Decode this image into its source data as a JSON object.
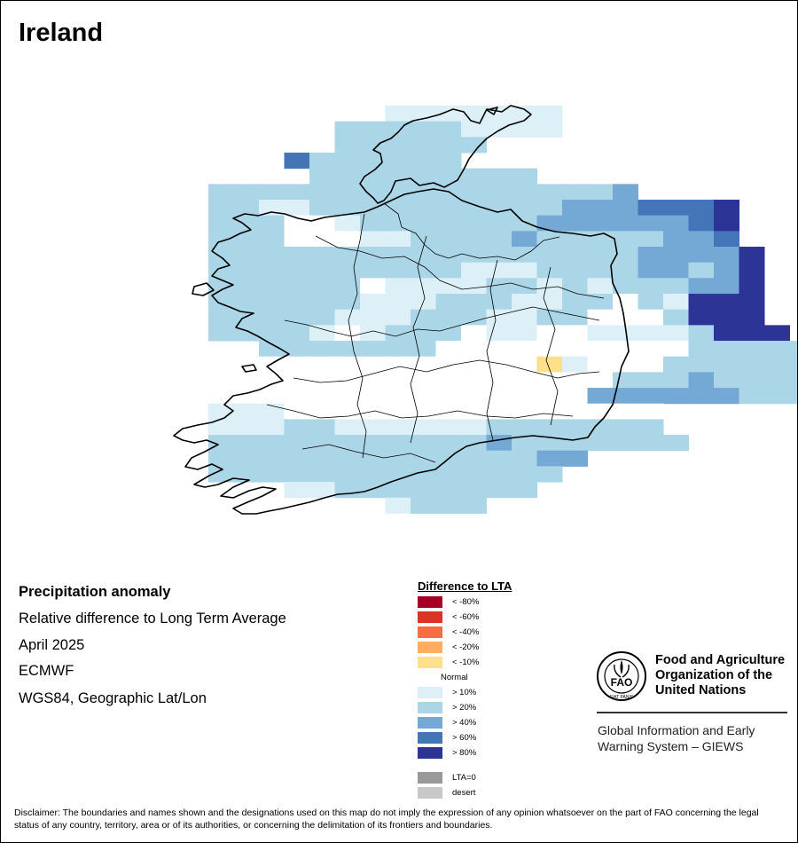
{
  "title": "Ireland",
  "info": {
    "heading": "Precipitation anomaly",
    "line1": "Relative difference to Long Term Average",
    "line2": "April 2025",
    "line3": "ECMWF",
    "line4": "WGS84, Geographic Lat/Lon"
  },
  "legend": {
    "title": "Difference to LTA",
    "items": [
      {
        "label": "< -80%",
        "color": "#a50026"
      },
      {
        "label": "< -60%",
        "color": "#dd3324"
      },
      {
        "label": "< -40%",
        "color": "#f46d43"
      },
      {
        "label": "< -20%",
        "color": "#fdae61"
      },
      {
        "label": "< -10%",
        "color": "#fee08b"
      },
      {
        "label": "Normal",
        "color": "#ffffff"
      },
      {
        "label": "> 10%",
        "color": "#ddf0f7"
      },
      {
        "label": "> 20%",
        "color": "#abd6e8"
      },
      {
        "label": "> 40%",
        "color": "#74a9d6"
      },
      {
        "label": "> 60%",
        "color": "#4575b9"
      },
      {
        "label": "> 80%",
        "color": "#2c3495"
      }
    ],
    "extras": [
      {
        "label": "LTA=0",
        "color": "#999999"
      },
      {
        "label": "desert",
        "color": "#c8c8c8"
      }
    ]
  },
  "grid_colors": {
    "n": "#ffffff",
    "a": "#ddf0f7",
    "b": "#abd6e8",
    "c": "#74a9d6",
    "d": "#4575b9",
    "e": "#2c3495",
    "y": "#fee08b"
  },
  "grid": [
    {
      "row": 0,
      "cells": "...........aaaaaaa......"
    },
    {
      "row": 1,
      "cells": ".........bbbbbaaaa......"
    },
    {
      "row": 2,
      "cells": ".........bbbbbb........."
    },
    {
      "row": 3,
      "cells": ".......dbbbbbb.........."
    },
    {
      "row": 4,
      "cells": "........bbbbbbbbb......."
    },
    {
      "row": 5,
      "cells": "....bbbbbbbbbbbbbbbbc...."
    },
    {
      "row": 6,
      "cells": "....bbaabbbbbbbbbbcccddde"
    },
    {
      "row": 7,
      "cells": "....bbbnnabbbbbbbccccccde"
    },
    {
      "row": 8,
      "cells": "....bbbnnnaabbbbcbbbbbccd."
    },
    {
      "row": 9,
      "cells": "....bbbbbbbbbbbbbbbbbcccce"
    },
    {
      "row": 10,
      "cells": "....bbbbbbbbbbaaabbbbccbce"
    },
    {
      "row": 11,
      "cells": "....bbbbbbnaaaabbababbbcce"
    },
    {
      "row": 12,
      "cells": "....bbbbbbaaabbbaabbnbaeee"
    },
    {
      "row": 13,
      "cells": "....bbbbbaaabbbaabbnnnbeee"
    },
    {
      "row": 14,
      "cells": "....bbbbanabbbnaannaaaabeee"
    },
    {
      "row": 15,
      "cells": "......bbbbbbbnnnnnnnnnnbbbbb"
    },
    {
      "row": 16,
      "cells": "......nnnnnnnnnnnyannnbbbbbb"
    },
    {
      "row": 17,
      "cells": "......nnnnnnnnnnnnnnbbbcbbbb"
    },
    {
      "row": 18,
      "cells": "......nnnnnnnnnnnnnccccccbbb"
    },
    {
      "row": 19,
      "cells": "....aaannnnnnnnnnnnnnn......"
    },
    {
      "row": 20,
      "cells": "....aaabbaaaaaabbbbbbb......"
    },
    {
      "row": 21,
      "cells": "....bbbbbbbbbbbcbbbbbbb......"
    },
    {
      "row": 22,
      "cells": "....bbbbbbbbbbbbbcc........."
    },
    {
      "row": 23,
      "cells": "....bbbbbbbbbbbbbb.........."
    },
    {
      "row": 24,
      "cells": ".......aabbbbbbbb..........."
    },
    {
      "row": 25,
      "cells": "...........abbb............."
    }
  ],
  "logo": {
    "org_name": "Food and Agriculture Organization of the United Nations",
    "seal_letters": "FAO",
    "seal_motto": "FIAT PANIS"
  },
  "giews": "Global Information and Early Warning System – GIEWS",
  "disclaimer": "Disclaimer: The boundaries and names shown and the designations used on this map do not imply the expression of any opinion whatsoever on the part of FAO concerning the legal status of any country, territory, area or of its authorities, or concerning the delimitation of its frontiers and boundaries."
}
